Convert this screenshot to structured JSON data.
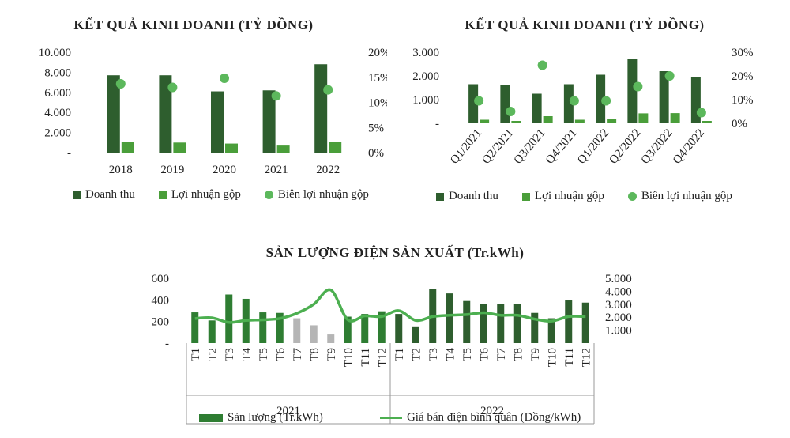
{
  "chart_data": [
    {
      "type": "bar",
      "title": "KẾT QUẢ KINH DOANH (TỶ ĐỒNG)",
      "categories": [
        "2018",
        "2019",
        "2020",
        "2021",
        "2022"
      ],
      "series": [
        {
          "name": "Doanh thu",
          "kind": "bar",
          "axis": "left",
          "color": "#2e5e2e",
          "values": [
            7700,
            7700,
            6100,
            6200,
            8800
          ]
        },
        {
          "name": "Lợi nhuận gộp",
          "kind": "bar",
          "axis": "left",
          "color": "#4a9e3a",
          "values": [
            1050,
            1000,
            900,
            700,
            1100
          ]
        },
        {
          "name": "Biên lợi nhuận gộp",
          "kind": "dot",
          "axis": "right",
          "color": "#5cb85c",
          "values": [
            13.7,
            13.0,
            14.8,
            11.3,
            12.5
          ]
        }
      ],
      "y_left": {
        "min": 0,
        "max": 10000,
        "ticks": [
          "-",
          "2.000",
          "4.000",
          "6.000",
          "8.000",
          "10.000"
        ]
      },
      "y_right": {
        "min": 0,
        "max": 20,
        "ticks": [
          "0%",
          "5%",
          "10%",
          "15%",
          "20%"
        ]
      }
    },
    {
      "type": "bar",
      "title": "KẾT QUẢ KINH DOANH (TỶ ĐỒNG)",
      "categories": [
        "Q1/2021",
        "Q2/2021",
        "Q3/2021",
        "Q4/2021",
        "Q1/2022",
        "Q2/2022",
        "Q3/2022",
        "Q4/2022"
      ],
      "series": [
        {
          "name": "Doanh thu",
          "kind": "bar",
          "axis": "left",
          "color": "#2e5e2e",
          "values": [
            1650,
            1620,
            1250,
            1650,
            2050,
            2700,
            2200,
            1950
          ]
        },
        {
          "name": "Lợi nhuận gộp",
          "kind": "bar",
          "axis": "left",
          "color": "#4a9e3a",
          "values": [
            150,
            100,
            300,
            150,
            200,
            420,
            430,
            100
          ]
        },
        {
          "name": "Biên lợi nhuận gộp",
          "kind": "dot",
          "axis": "right",
          "color": "#5cb85c",
          "values": [
            9.5,
            5.0,
            24.5,
            9.5,
            9.5,
            15.5,
            20.0,
            4.5
          ]
        }
      ],
      "y_left": {
        "min": 0,
        "max": 3000,
        "ticks": [
          "-",
          "1.000",
          "2.000",
          "3.000"
        ]
      },
      "y_right": {
        "min": 0,
        "max": 30,
        "ticks": [
          "0%",
          "10%",
          "20%",
          "30%"
        ]
      }
    },
    {
      "type": "bar",
      "title": "SẢN LƯỢNG ĐIỆN SẢN XUẤT (Tr.kWh)",
      "categories": [
        "T1",
        "T2",
        "T3",
        "T4",
        "T5",
        "T6",
        "T7",
        "T8",
        "T9",
        "T10",
        "T11",
        "T12",
        "T1",
        "T2",
        "T3",
        "T4",
        "T5",
        "T6",
        "T7",
        "T8",
        "T9",
        "T10",
        "T11",
        "T12"
      ],
      "groups": [
        {
          "label": "2021",
          "count": 12
        },
        {
          "label": "2022",
          "count": 12
        }
      ],
      "series": [
        {
          "name": "Sản lượng (Tr.kWh)",
          "kind": "bar",
          "axis": "left",
          "color": "#2e7d32",
          "values": [
            285,
            210,
            450,
            410,
            285,
            280,
            230,
            165,
            80,
            245,
            270,
            295,
            270,
            155,
            500,
            460,
            390,
            360,
            360,
            360,
            280,
            230,
            395,
            375
          ],
          "point_colors": [
            "#2e7d32",
            "#2e7d32",
            "#2e7d32",
            "#2e7d32",
            "#2e7d32",
            "#2e7d32",
            "#b5b5b5",
            "#b5b5b5",
            "#b5b5b5",
            "#2e7d32",
            "#2e7d32",
            "#2e7d32",
            "#2e5e2e",
            "#2e5e2e",
            "#2e5e2e",
            "#2e5e2e",
            "#2e5e2e",
            "#2e5e2e",
            "#2e5e2e",
            "#2e5e2e",
            "#2e5e2e",
            "#2e5e2e",
            "#2e5e2e",
            "#2e5e2e"
          ]
        },
        {
          "name": "Giá bán điện bình quân (Đồng/kWh)",
          "kind": "line",
          "axis": "right",
          "color": "#4caf50",
          "values": [
            1900,
            1950,
            1600,
            1750,
            1800,
            1900,
            2300,
            3000,
            4100,
            1800,
            2100,
            2050,
            2500,
            1750,
            2050,
            2150,
            2200,
            2350,
            2150,
            2150,
            1850,
            1700,
            2050,
            2050
          ]
        }
      ],
      "y_left": {
        "min": 0,
        "max": 600,
        "ticks": [
          "-",
          "200",
          "400",
          "600"
        ]
      },
      "y_right": {
        "min": 0,
        "max": 5000,
        "ticks": [
          "1.000",
          "2.000",
          "3.000",
          "4.000",
          "5.000"
        ]
      }
    }
  ]
}
